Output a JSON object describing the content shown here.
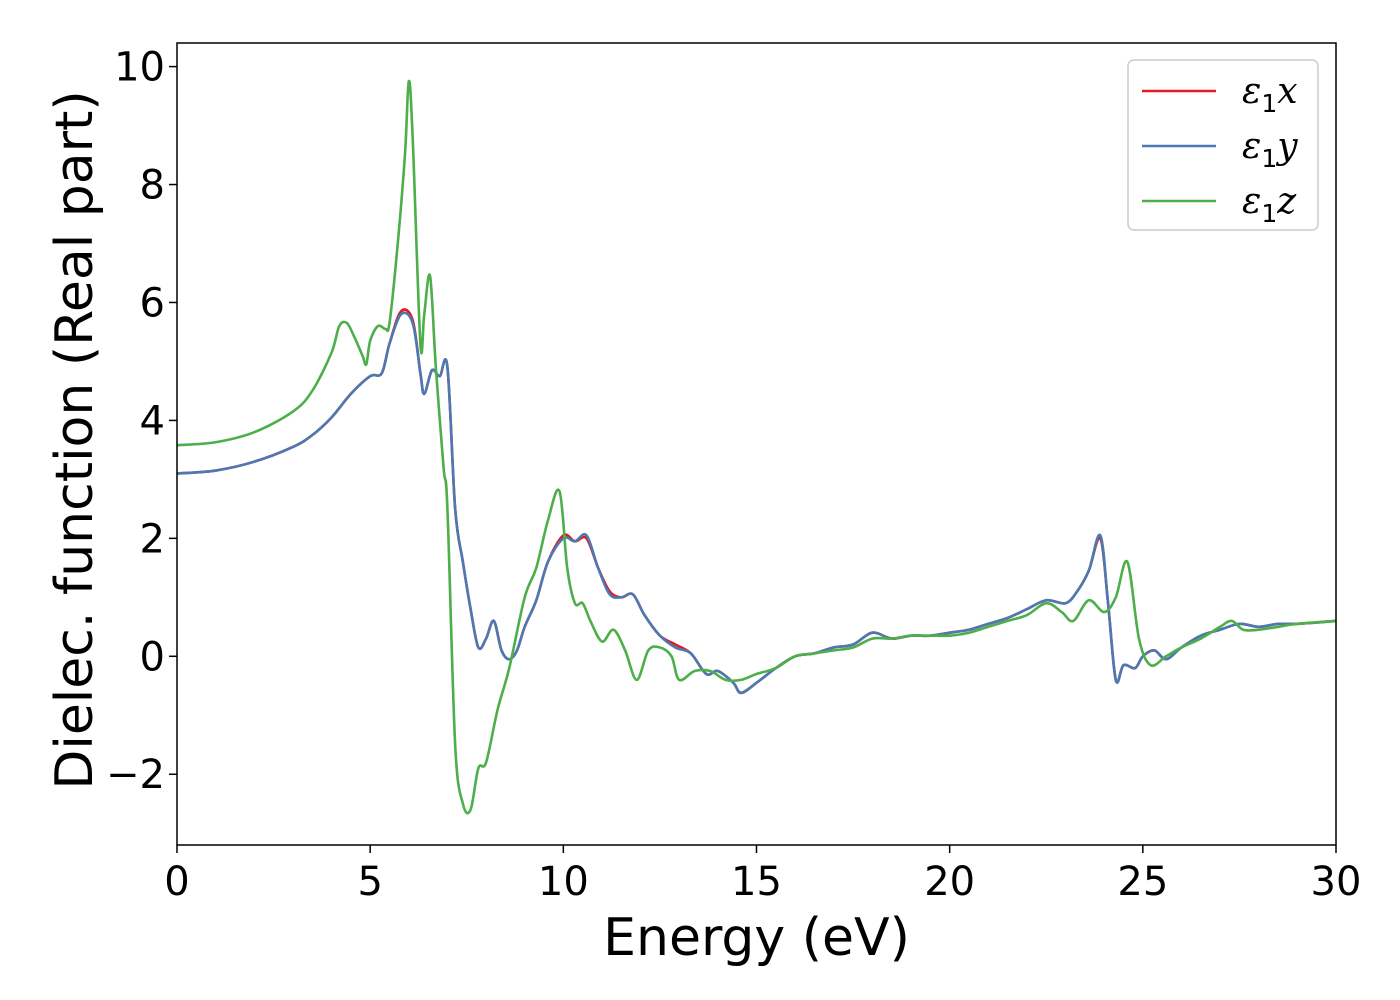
{
  "chart_data": {
    "type": "line",
    "xlabel": "Energy (eV)",
    "ylabel": "Dielec. function (Real part)",
    "xlim": [
      0,
      30
    ],
    "ylim": [
      -3.2,
      10.4
    ],
    "xticks": [
      0,
      5,
      10,
      15,
      20,
      25,
      30
    ],
    "xtick_labels": [
      "0",
      "5",
      "10",
      "15",
      "20",
      "25",
      "30"
    ],
    "yticks": [
      -2,
      0,
      2,
      4,
      6,
      8,
      10
    ],
    "ytick_labels": [
      "−2",
      "0",
      "2",
      "4",
      "6",
      "8",
      "10"
    ],
    "grid": false,
    "legend_position": "top-right",
    "series": [
      {
        "name": "ε₁x",
        "legend_base": "ε",
        "legend_sub": "1",
        "legend_var": "x",
        "color": "#e41a1c",
        "x": [
          0,
          1,
          2,
          3,
          3.5,
          4,
          4.5,
          5,
          5.3,
          5.5,
          5.8,
          6.1,
          6.3,
          6.4,
          6.6,
          6.8,
          7.0,
          7.2,
          7.4,
          7.6,
          7.8,
          8.0,
          8.2,
          8.4,
          8.6,
          8.8,
          9.0,
          9.3,
          9.6,
          10.0,
          10.3,
          10.6,
          10.9,
          11.2,
          11.5,
          11.8,
          12.1,
          12.5,
          12.9,
          13.3,
          13.7,
          14.0,
          14.4,
          14.6,
          15.0,
          15.5,
          16.0,
          16.5,
          17.0,
          17.5,
          18.0,
          18.5,
          19.0,
          19.5,
          20.0,
          20.5,
          21.0,
          21.5,
          22.0,
          22.5,
          23.0,
          23.3,
          23.6,
          23.9,
          24.1,
          24.3,
          24.5,
          24.8,
          25.0,
          25.3,
          25.6,
          26.0,
          26.5,
          27.0,
          27.5,
          28.0,
          28.5,
          29.0,
          30.0
        ],
        "values": [
          3.1,
          3.15,
          3.3,
          3.55,
          3.75,
          4.05,
          4.45,
          4.75,
          4.8,
          5.3,
          5.85,
          5.7,
          4.8,
          4.45,
          4.85,
          4.75,
          4.9,
          2.5,
          1.6,
          0.8,
          0.15,
          0.3,
          0.6,
          0.1,
          -0.05,
          0.1,
          0.5,
          0.95,
          1.6,
          2.05,
          1.95,
          2.0,
          1.5,
          1.1,
          1.0,
          1.05,
          0.7,
          0.35,
          0.2,
          0.05,
          -0.3,
          -0.25,
          -0.45,
          -0.62,
          -0.45,
          -0.2,
          0.0,
          0.05,
          0.15,
          0.2,
          0.4,
          0.3,
          0.35,
          0.35,
          0.4,
          0.45,
          0.55,
          0.65,
          0.8,
          0.95,
          0.9,
          1.1,
          1.45,
          2.0,
          0.9,
          -0.4,
          -0.15,
          -0.2,
          0.0,
          0.1,
          -0.05,
          0.15,
          0.35,
          0.45,
          0.55,
          0.5,
          0.55,
          0.55,
          0.6
        ]
      },
      {
        "name": "ε₁y",
        "legend_base": "ε",
        "legend_sub": "1",
        "legend_var": "y",
        "color": "#4a79b4",
        "x": [
          0,
          1,
          2,
          3,
          3.5,
          4,
          4.5,
          5,
          5.3,
          5.5,
          5.8,
          6.1,
          6.3,
          6.4,
          6.6,
          6.8,
          7.0,
          7.2,
          7.4,
          7.6,
          7.8,
          8.0,
          8.2,
          8.4,
          8.6,
          8.8,
          9.0,
          9.3,
          9.6,
          10.0,
          10.3,
          10.6,
          10.9,
          11.2,
          11.5,
          11.8,
          12.1,
          12.5,
          12.9,
          13.3,
          13.7,
          14.0,
          14.4,
          14.6,
          15.0,
          15.5,
          16.0,
          16.5,
          17.0,
          17.5,
          18.0,
          18.5,
          19.0,
          19.5,
          20.0,
          20.5,
          21.0,
          21.5,
          22.0,
          22.5,
          23.0,
          23.3,
          23.6,
          23.9,
          24.1,
          24.3,
          24.5,
          24.8,
          25.0,
          25.3,
          25.6,
          26.0,
          26.5,
          27.0,
          27.5,
          28.0,
          28.5,
          29.0,
          30.0
        ],
        "values": [
          3.1,
          3.15,
          3.3,
          3.55,
          3.75,
          4.05,
          4.45,
          4.75,
          4.8,
          5.3,
          5.8,
          5.65,
          4.8,
          4.45,
          4.85,
          4.75,
          4.9,
          2.5,
          1.6,
          0.8,
          0.15,
          0.3,
          0.6,
          0.1,
          -0.05,
          0.1,
          0.5,
          0.95,
          1.6,
          2.0,
          1.95,
          2.05,
          1.5,
          1.05,
          1.0,
          1.05,
          0.7,
          0.35,
          0.15,
          0.05,
          -0.3,
          -0.25,
          -0.45,
          -0.62,
          -0.45,
          -0.2,
          0.0,
          0.05,
          0.15,
          0.2,
          0.4,
          0.3,
          0.35,
          0.35,
          0.4,
          0.45,
          0.55,
          0.65,
          0.8,
          0.95,
          0.9,
          1.1,
          1.45,
          2.05,
          0.9,
          -0.4,
          -0.15,
          -0.2,
          0.0,
          0.1,
          -0.05,
          0.15,
          0.35,
          0.45,
          0.55,
          0.5,
          0.55,
          0.55,
          0.6
        ]
      },
      {
        "name": "ε₁z",
        "legend_base": "ε",
        "legend_sub": "1",
        "legend_var": "z",
        "color": "#4daf4a",
        "x": [
          0,
          1,
          2,
          3,
          3.5,
          4,
          4.2,
          4.4,
          4.6,
          4.8,
          4.9,
          5.0,
          5.2,
          5.4,
          5.5,
          5.7,
          5.9,
          6.0,
          6.1,
          6.3,
          6.4,
          6.55,
          6.7,
          6.9,
          7.0,
          7.2,
          7.4,
          7.6,
          7.8,
          8.0,
          8.3,
          8.6,
          9.0,
          9.3,
          9.6,
          9.9,
          10.1,
          10.3,
          10.5,
          10.7,
          11.0,
          11.3,
          11.6,
          11.9,
          12.2,
          12.5,
          12.8,
          13.0,
          13.4,
          13.8,
          14.2,
          14.6,
          15.0,
          15.5,
          16.0,
          16.5,
          17.0,
          17.5,
          18.0,
          18.5,
          19.0,
          19.5,
          20.0,
          20.5,
          21.0,
          21.5,
          22.0,
          22.5,
          22.9,
          23.2,
          23.6,
          24.0,
          24.3,
          24.6,
          24.9,
          25.2,
          25.6,
          26.0,
          26.5,
          27.0,
          27.3,
          27.6,
          28.0,
          28.5,
          29.0,
          30.0
        ],
        "values": [
          3.58,
          3.63,
          3.8,
          4.15,
          4.5,
          5.15,
          5.6,
          5.65,
          5.4,
          5.1,
          4.95,
          5.35,
          5.6,
          5.55,
          5.65,
          6.9,
          8.5,
          9.75,
          8.8,
          5.3,
          5.8,
          6.45,
          4.9,
          3.2,
          2.5,
          -1.5,
          -2.5,
          -2.6,
          -1.9,
          -1.8,
          -0.9,
          -0.2,
          1.0,
          1.5,
          2.3,
          2.8,
          1.5,
          0.9,
          0.9,
          0.6,
          0.25,
          0.45,
          0.1,
          -0.4,
          0.1,
          0.15,
          0.0,
          -0.4,
          -0.25,
          -0.25,
          -0.4,
          -0.4,
          -0.3,
          -0.2,
          0.0,
          0.05,
          0.1,
          0.15,
          0.3,
          0.3,
          0.35,
          0.35,
          0.35,
          0.4,
          0.5,
          0.6,
          0.7,
          0.9,
          0.75,
          0.6,
          0.95,
          0.75,
          1.0,
          1.6,
          0.3,
          -0.15,
          0.0,
          0.15,
          0.3,
          0.5,
          0.6,
          0.45,
          0.45,
          0.5,
          0.55,
          0.6
        ]
      }
    ]
  }
}
